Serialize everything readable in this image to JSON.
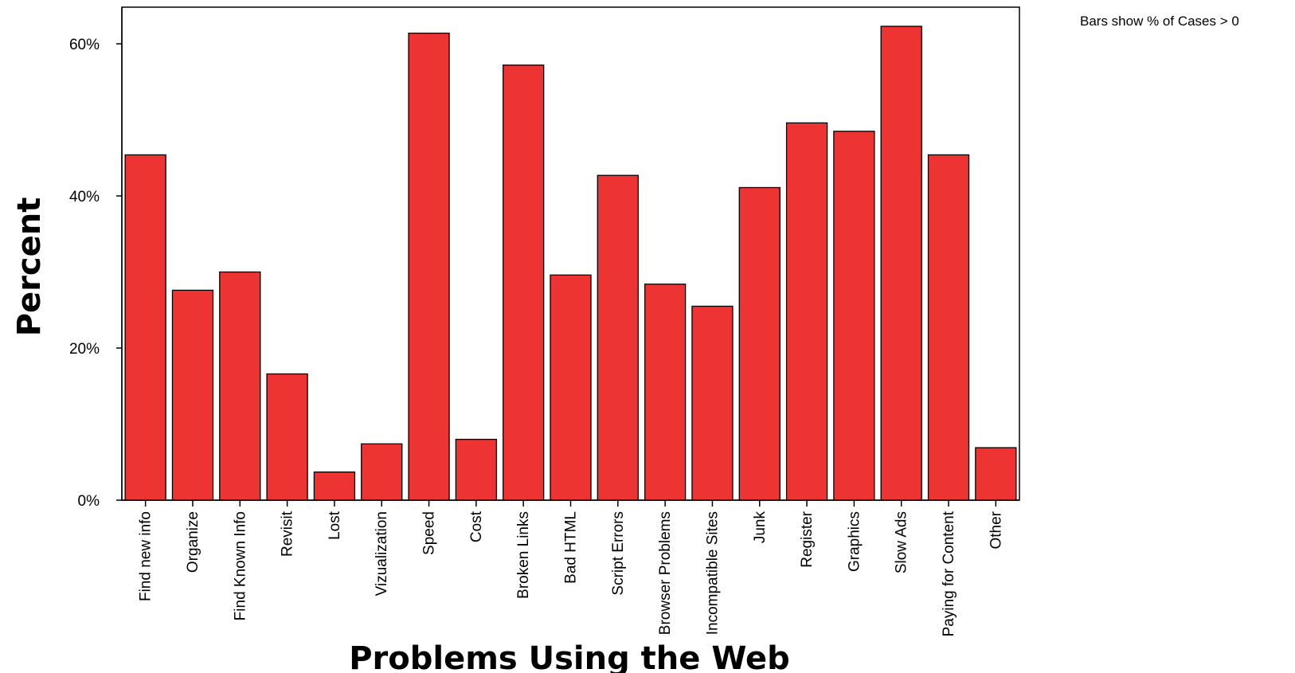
{
  "chart_data": {
    "type": "bar",
    "xlabel": "Problems Using the Web",
    "ylabel": "Percent",
    "note": "Bars show % of Cases > 0",
    "ylim": [
      0,
      65
    ],
    "yticks": [
      {
        "value": 0,
        "label": "0%"
      },
      {
        "value": 20,
        "label": "20%"
      },
      {
        "value": 40,
        "label": "40%"
      },
      {
        "value": 60,
        "label": "60%"
      }
    ],
    "grid": false,
    "legend": "none",
    "bar_color": "#ee3333",
    "categories": [
      "Find new info",
      "Organize",
      "Find Known Info",
      "Revisit",
      "Lost",
      "Vizualization",
      "Speed",
      "Cost",
      "Broken Links",
      "Bad HTML",
      "Script Errors",
      "Browser Problems",
      "Incompatible Sites",
      "Junk",
      "Register",
      "Graphics",
      "Slow Ads",
      "Paying for Content",
      "Other"
    ],
    "values": [
      45.4,
      27.6,
      30.0,
      16.6,
      3.7,
      7.4,
      61.4,
      8.0,
      57.2,
      29.6,
      42.7,
      28.4,
      25.5,
      41.1,
      49.6,
      48.5,
      62.3,
      45.4,
      6.9
    ]
  }
}
